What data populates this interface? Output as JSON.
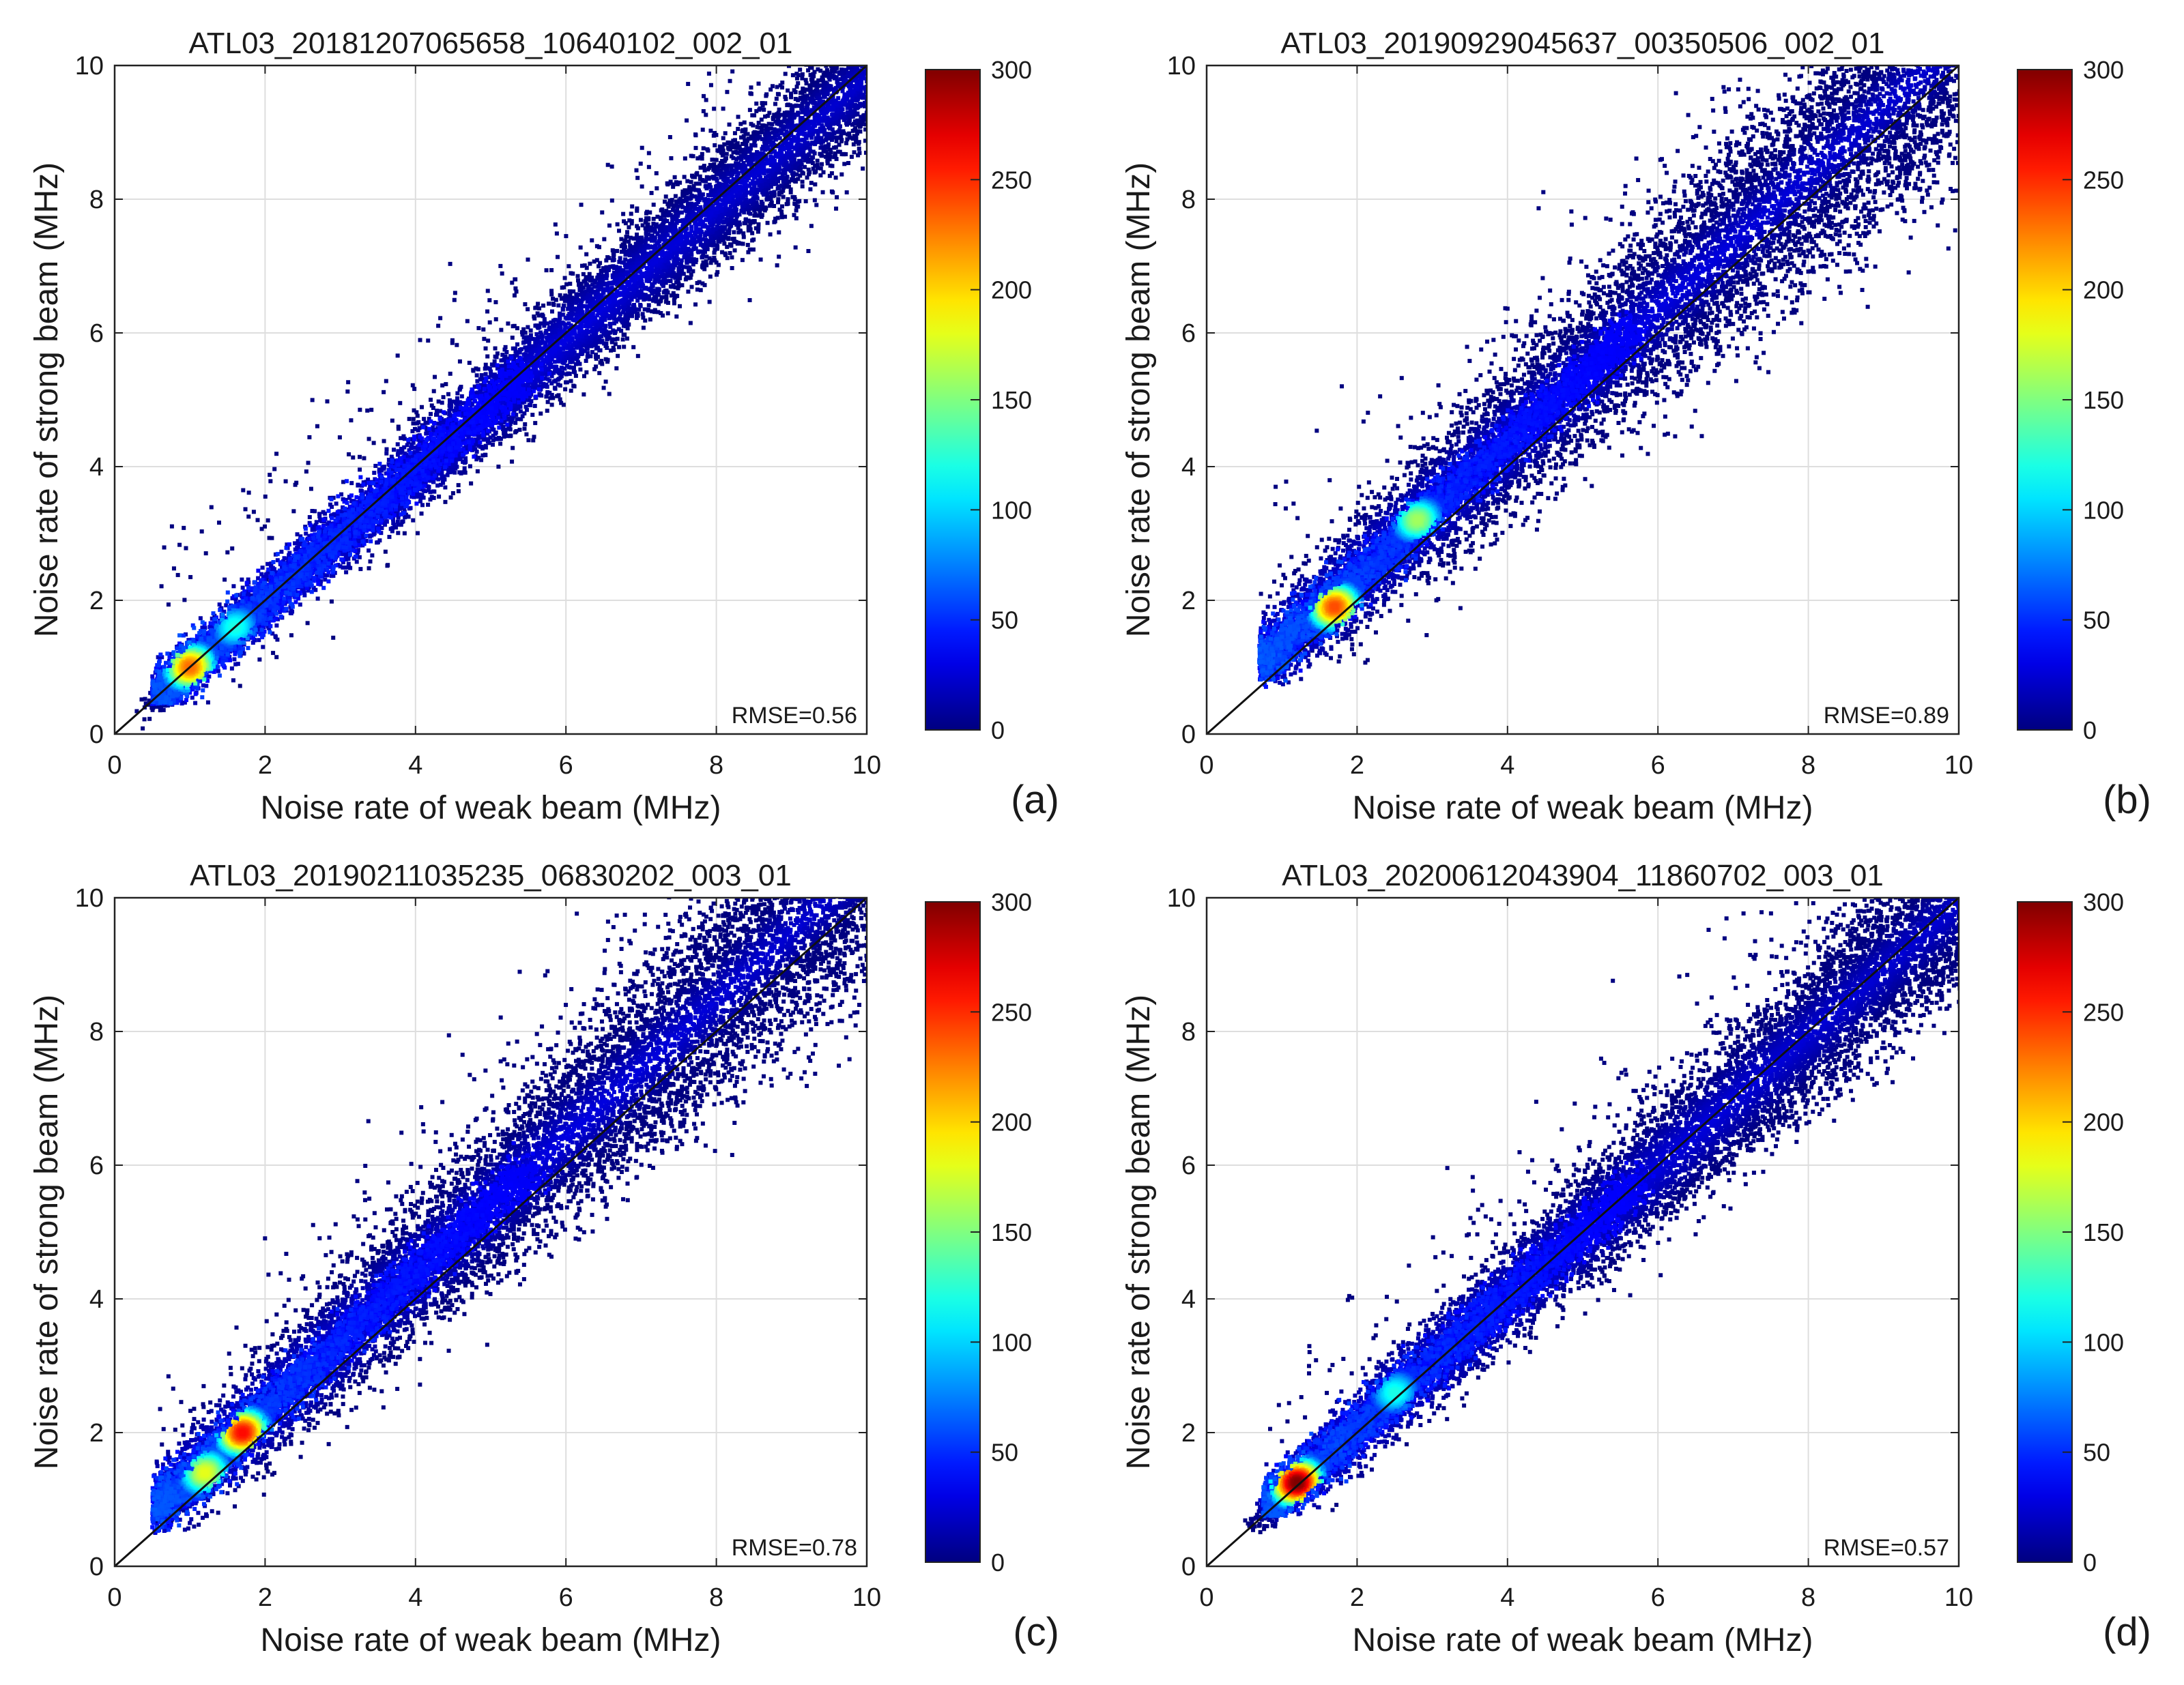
{
  "colormap": "jet",
  "colorbar": {
    "ticks": [
      0,
      50,
      100,
      150,
      200,
      250,
      300
    ],
    "range": [
      0,
      300
    ]
  },
  "chart_data": [
    {
      "type": "scatter",
      "panel_label": "(a)",
      "title": "ATL03_20181207065658_10640102_002_01",
      "xlabel": "Noise rate of weak beam (MHz)",
      "ylabel": "Noise rate of strong beam (MHz)",
      "xlim": [
        0,
        10
      ],
      "ylim": [
        0,
        10
      ],
      "xticks": [
        0,
        2,
        4,
        6,
        8,
        10
      ],
      "yticks": [
        0,
        2,
        4,
        6,
        8,
        10
      ],
      "grid": true,
      "reference_line": {
        "name": "1:1 line",
        "x": [
          0,
          10
        ],
        "y": [
          0,
          10
        ]
      },
      "annotation": "RMSE=0.56",
      "density": {
        "min_weak": 0.5,
        "min_strong": 0.45,
        "trend": {
          "slope": 0.98,
          "intercept": 0.02
        },
        "spread": 0.45,
        "peaks": [
          {
            "x": 1.0,
            "y": 1.0,
            "density": 230
          },
          {
            "x": 1.6,
            "y": 1.6,
            "density": 120
          }
        ]
      }
    },
    {
      "type": "scatter",
      "panel_label": "(b)",
      "title": "ATL03_20190929045637_00350506_002_01",
      "xlabel": "Noise rate of weak beam (MHz)",
      "ylabel": "Noise rate of strong beam (MHz)",
      "xlim": [
        0,
        10
      ],
      "ylim": [
        0,
        10
      ],
      "xticks": [
        0,
        2,
        4,
        6,
        8,
        10
      ],
      "yticks": [
        0,
        2,
        4,
        6,
        8,
        10
      ],
      "grid": true,
      "reference_line": {
        "name": "1:1 line",
        "x": [
          0,
          10
        ],
        "y": [
          0,
          10
        ]
      },
      "annotation": "RMSE=0.89",
      "density": {
        "min_weak": 0.7,
        "min_strong": 0.7,
        "trend": {
          "slope": 1.0,
          "intercept": 0.35
        },
        "spread": 0.85,
        "peaks": [
          {
            "x": 1.7,
            "y": 1.9,
            "density": 240
          },
          {
            "x": 2.8,
            "y": 3.2,
            "density": 160
          }
        ]
      }
    },
    {
      "type": "scatter",
      "panel_label": "(c)",
      "title": "ATL03_20190211035235_06830202_003_01",
      "xlabel": "Noise rate of weak beam (MHz)",
      "ylabel": "Noise rate of strong beam (MHz)",
      "xlim": [
        0,
        10
      ],
      "ylim": [
        0,
        10
      ],
      "xticks": [
        0,
        2,
        4,
        6,
        8,
        10
      ],
      "yticks": [
        0,
        2,
        4,
        6,
        8,
        10
      ],
      "grid": true,
      "reference_line": {
        "name": "1:1 line",
        "x": [
          0,
          10
        ],
        "y": [
          0,
          10
        ]
      },
      "annotation": "RMSE=0.78",
      "density": {
        "min_weak": 0.5,
        "min_strong": 0.5,
        "trend": {
          "slope": 1.02,
          "intercept": 0.3
        },
        "spread": 0.8,
        "peaks": [
          {
            "x": 1.7,
            "y": 2.0,
            "density": 260
          },
          {
            "x": 1.2,
            "y": 1.4,
            "density": 180
          }
        ]
      }
    },
    {
      "type": "scatter",
      "panel_label": "(d)",
      "title": "ATL03_20200612043904_11860702_003_01",
      "xlabel": "Noise rate of weak beam (MHz)",
      "ylabel": "Noise rate of strong beam (MHz)",
      "xlim": [
        0,
        10
      ],
      "ylim": [
        0,
        10
      ],
      "xticks": [
        0,
        2,
        4,
        6,
        8,
        10
      ],
      "yticks": [
        0,
        2,
        4,
        6,
        8,
        10
      ],
      "grid": true,
      "reference_line": {
        "name": "1:1 line",
        "x": [
          0,
          10
        ],
        "y": [
          0,
          10
        ]
      },
      "annotation": "RMSE=0.57",
      "density": {
        "min_weak": 0.75,
        "min_strong": 0.75,
        "trend": {
          "slope": 0.98,
          "intercept": 0.1
        },
        "spread": 0.55,
        "peaks": [
          {
            "x": 1.2,
            "y": 1.25,
            "density": 300
          },
          {
            "x": 2.5,
            "y": 2.6,
            "density": 120
          }
        ]
      }
    }
  ]
}
